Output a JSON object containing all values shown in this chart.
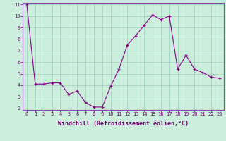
{
  "x": [
    0,
    1,
    2,
    3,
    4,
    5,
    6,
    7,
    8,
    9,
    10,
    11,
    12,
    13,
    14,
    15,
    16,
    17,
    18,
    19,
    20,
    21,
    22,
    23
  ],
  "y": [
    11.0,
    4.1,
    4.1,
    4.2,
    4.2,
    3.2,
    3.5,
    2.5,
    2.1,
    2.1,
    3.9,
    5.4,
    7.5,
    8.3,
    9.2,
    10.1,
    9.7,
    10.0,
    5.4,
    6.6,
    5.4,
    5.1,
    4.7,
    4.6
  ],
  "xlabel": "Windchill (Refroidissement éolien,°C)",
  "ylim": [
    2,
    11
  ],
  "yticks": [
    2,
    3,
    4,
    5,
    6,
    7,
    8,
    9,
    10,
    11
  ],
  "xlim": [
    0,
    23
  ],
  "xticks": [
    0,
    1,
    2,
    3,
    4,
    5,
    6,
    7,
    8,
    9,
    10,
    11,
    12,
    13,
    14,
    15,
    16,
    17,
    18,
    19,
    20,
    21,
    22,
    23
  ],
  "line_color": "#880088",
  "marker": "+",
  "bg_color": "#cceedd",
  "grid_color": "#99ccbb",
  "tick_label_fontsize": 5.0,
  "xlabel_fontsize": 6.0,
  "spine_color": "#8844aa"
}
